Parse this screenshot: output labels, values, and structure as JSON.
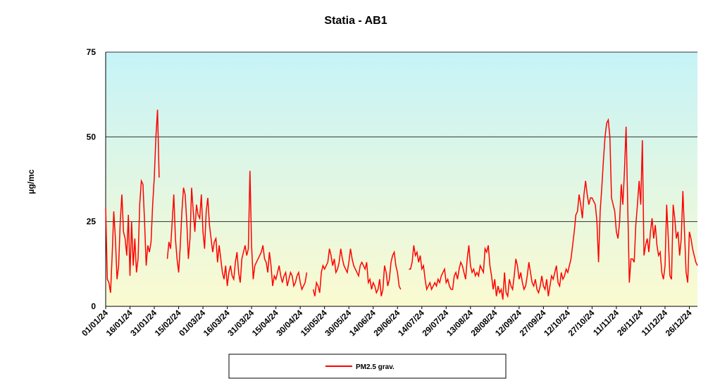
{
  "chart_data": {
    "type": "line",
    "title": "Statia  - AB1",
    "y_label": "µg/mc",
    "ylim": [
      0,
      75
    ],
    "yticks": [
      0,
      25,
      50,
      75
    ],
    "grid": true,
    "categories": [
      "01/01/24",
      null,
      null,
      null,
      null,
      null,
      null,
      null,
      null,
      null,
      null,
      null,
      null,
      null,
      null,
      "16/01/24",
      null,
      null,
      null,
      null,
      null,
      null,
      null,
      null,
      null,
      null,
      null,
      null,
      null,
      null,
      "31/01/24",
      null,
      null,
      null,
      null,
      null,
      null,
      null,
      null,
      null,
      null,
      null,
      null,
      null,
      null,
      "15/02/24",
      null,
      null,
      null,
      null,
      null,
      null,
      null,
      null,
      null,
      null,
      null,
      null,
      null,
      null,
      "01/03/24",
      null,
      null,
      null,
      null,
      null,
      null,
      null,
      null,
      null,
      null,
      null,
      null,
      null,
      null,
      "16/03/24",
      null,
      null,
      null,
      null,
      null,
      null,
      null,
      null,
      null,
      null,
      null,
      null,
      null,
      null,
      "31/03/24",
      null,
      null,
      null,
      null,
      null,
      null,
      null,
      null,
      null,
      null,
      null,
      null,
      null,
      null,
      "15/04/24",
      null,
      null,
      null,
      null,
      null,
      null,
      null,
      null,
      null,
      null,
      null,
      null,
      null,
      null,
      "30/04/24",
      null,
      null,
      null,
      null,
      null,
      null,
      null,
      null,
      null,
      null,
      null,
      null,
      null,
      null,
      "15/05/24",
      null,
      null,
      null,
      null,
      null,
      null,
      null,
      null,
      null,
      null,
      null,
      null,
      null,
      null,
      "30/05/24",
      null,
      null,
      null,
      null,
      null,
      null,
      null,
      null,
      null,
      null,
      null,
      null,
      null,
      null,
      "14/06/24",
      null,
      null,
      null,
      null,
      null,
      null,
      null,
      null,
      null,
      null,
      null,
      null,
      null,
      null,
      "29/06/24",
      null,
      null,
      null,
      null,
      null,
      null,
      null,
      null,
      null,
      null,
      null,
      null,
      null,
      null,
      "14/07/24",
      null,
      null,
      null,
      null,
      null,
      null,
      null,
      null,
      null,
      null,
      null,
      null,
      null,
      null,
      "29/07/24",
      null,
      null,
      null,
      null,
      null,
      null,
      null,
      null,
      null,
      null,
      null,
      null,
      null,
      null,
      "13/08/24",
      null,
      null,
      null,
      null,
      null,
      null,
      null,
      null,
      null,
      null,
      null,
      null,
      null,
      null,
      "28/08/24",
      null,
      null,
      null,
      null,
      null,
      null,
      null,
      null,
      null,
      null,
      null,
      null,
      null,
      null,
      "12/09/24",
      null,
      null,
      null,
      null,
      null,
      null,
      null,
      null,
      null,
      null,
      null,
      null,
      null,
      null,
      "27/09/24",
      null,
      null,
      null,
      null,
      null,
      null,
      null,
      null,
      null,
      null,
      null,
      null,
      null,
      null,
      "12/10/24",
      null,
      null,
      null,
      null,
      null,
      null,
      null,
      null,
      null,
      null,
      null,
      null,
      null,
      null,
      "27/10/24",
      null,
      null,
      null,
      null,
      null,
      null,
      null,
      null,
      null,
      null,
      null,
      null,
      null,
      null,
      "11/11/24",
      null,
      null,
      null,
      null,
      null,
      null,
      null,
      null,
      null,
      null,
      null,
      null,
      null,
      null,
      "26/11/24",
      null,
      null,
      null,
      null,
      null,
      null,
      null,
      null,
      null,
      null,
      null,
      null,
      null,
      null,
      "11/12/24",
      null,
      null,
      null,
      null,
      null,
      null,
      null,
      null,
      null,
      null,
      null,
      null,
      null,
      null,
      "26/12/24",
      null,
      null,
      null,
      null,
      null
    ],
    "series": [
      {
        "name": "PM2.5 grav.",
        "color": "#ff0000",
        "values": [
          29,
          8,
          7,
          4,
          15,
          28,
          20,
          8,
          12,
          25,
          33,
          22,
          20,
          15,
          27,
          9,
          25,
          12,
          20,
          10,
          14,
          30,
          37,
          36,
          25,
          12,
          18,
          16,
          19,
          30,
          38,
          50,
          58,
          38,
          null,
          null,
          null,
          null,
          14,
          19,
          17,
          25,
          33,
          20,
          14,
          10,
          18,
          28,
          35,
          33,
          25,
          14,
          20,
          35,
          28,
          22,
          30,
          27,
          26,
          33,
          22,
          17,
          28,
          32,
          24,
          20,
          16,
          19,
          20,
          13,
          18,
          14,
          10,
          8,
          12,
          6,
          10,
          12,
          9,
          8,
          13,
          16,
          10,
          7,
          14,
          16,
          18,
          15,
          17,
          40,
          18,
          8,
          12,
          13,
          14,
          15,
          16,
          18,
          14,
          13,
          10,
          16,
          12,
          6,
          9,
          8,
          10,
          12,
          9,
          7,
          9,
          10,
          6,
          8,
          10,
          9,
          6,
          7,
          9,
          10,
          7,
          5,
          6,
          7,
          10,
          null,
          null,
          null,
          5,
          3,
          7,
          6,
          4,
          10,
          12,
          11,
          12,
          13,
          17,
          15,
          12,
          14,
          10,
          11,
          13,
          17,
          14,
          12,
          11,
          10,
          13,
          17,
          14,
          12,
          11,
          10,
          9,
          12,
          13,
          12,
          11,
          13,
          7,
          8,
          5,
          7,
          6,
          4,
          5,
          8,
          3,
          5,
          12,
          10,
          6,
          8,
          13,
          15,
          16,
          12,
          10,
          6,
          5,
          null,
          null,
          null,
          null,
          11,
          11,
          13,
          18,
          15,
          16,
          13,
          15,
          11,
          12,
          8,
          5,
          6,
          7,
          5,
          6,
          7,
          6,
          8,
          7,
          9,
          10,
          11,
          7,
          8,
          6,
          5,
          5,
          9,
          10,
          8,
          11,
          13,
          12,
          10,
          8,
          14,
          18,
          12,
          10,
          11,
          9,
          10,
          9,
          12,
          11,
          10,
          17,
          16,
          18,
          12,
          9,
          5,
          8,
          3,
          6,
          4,
          5,
          2,
          10,
          4,
          3,
          8,
          6,
          5,
          9,
          14,
          12,
          8,
          10,
          7,
          5,
          6,
          9,
          13,
          10,
          7,
          6,
          8,
          5,
          4,
          6,
          9,
          6,
          5,
          8,
          3,
          6,
          9,
          8,
          10,
          12,
          7,
          6,
          10,
          8,
          9,
          11,
          10,
          12,
          14,
          18,
          22,
          27,
          28,
          33,
          30,
          26,
          33,
          37,
          33,
          30,
          32,
          32,
          31,
          30,
          25,
          13,
          28,
          35,
          43,
          50,
          54,
          55,
          50,
          32,
          30,
          28,
          22,
          20,
          25,
          36,
          30,
          40,
          53,
          30,
          7,
          14,
          14,
          13,
          24,
          30,
          37,
          30,
          49,
          15,
          18,
          20,
          16,
          22,
          26,
          20,
          24,
          18,
          15,
          16,
          10,
          8,
          12,
          30,
          20,
          9,
          8,
          30,
          26,
          20,
          22,
          15,
          20,
          34,
          22,
          10,
          7,
          22,
          20,
          17,
          15,
          13,
          12
        ]
      }
    ]
  }
}
